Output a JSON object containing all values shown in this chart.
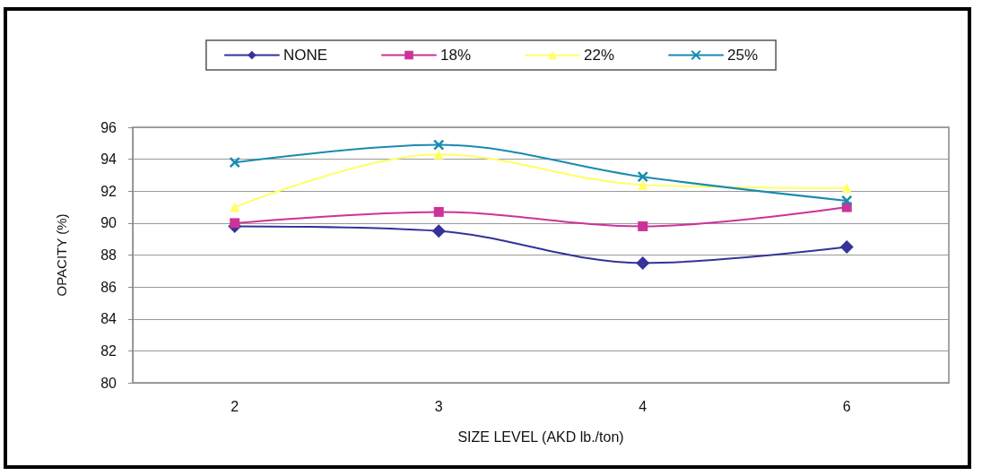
{
  "chart_data": {
    "type": "line",
    "xlabel": "SIZE LEVEL (AKD lb./ton)",
    "ylabel": "OPACITY (%)",
    "categories": [
      "2",
      "3",
      "4",
      "6"
    ],
    "series": [
      {
        "name": "NONE",
        "color": "#333399",
        "marker": "diamond",
        "values": [
          89.8,
          89.5,
          87.5,
          88.5
        ]
      },
      {
        "name": "18%",
        "color": "#cc3399",
        "marker": "square",
        "values": [
          90.0,
          90.7,
          89.8,
          91.0
        ]
      },
      {
        "name": "22%",
        "color": "#ffff66",
        "marker": "triangle",
        "values": [
          91.0,
          94.3,
          92.4,
          92.2
        ]
      },
      {
        "name": "25%",
        "color": "#1a8ab0",
        "marker": "cross",
        "values": [
          93.8,
          94.9,
          92.9,
          91.4
        ]
      }
    ],
    "ylim": [
      80,
      96
    ],
    "yticks": [
      80,
      82,
      84,
      86,
      88,
      90,
      92,
      94,
      96
    ],
    "grid": "y",
    "legend": "top",
    "line_style": "solid"
  }
}
